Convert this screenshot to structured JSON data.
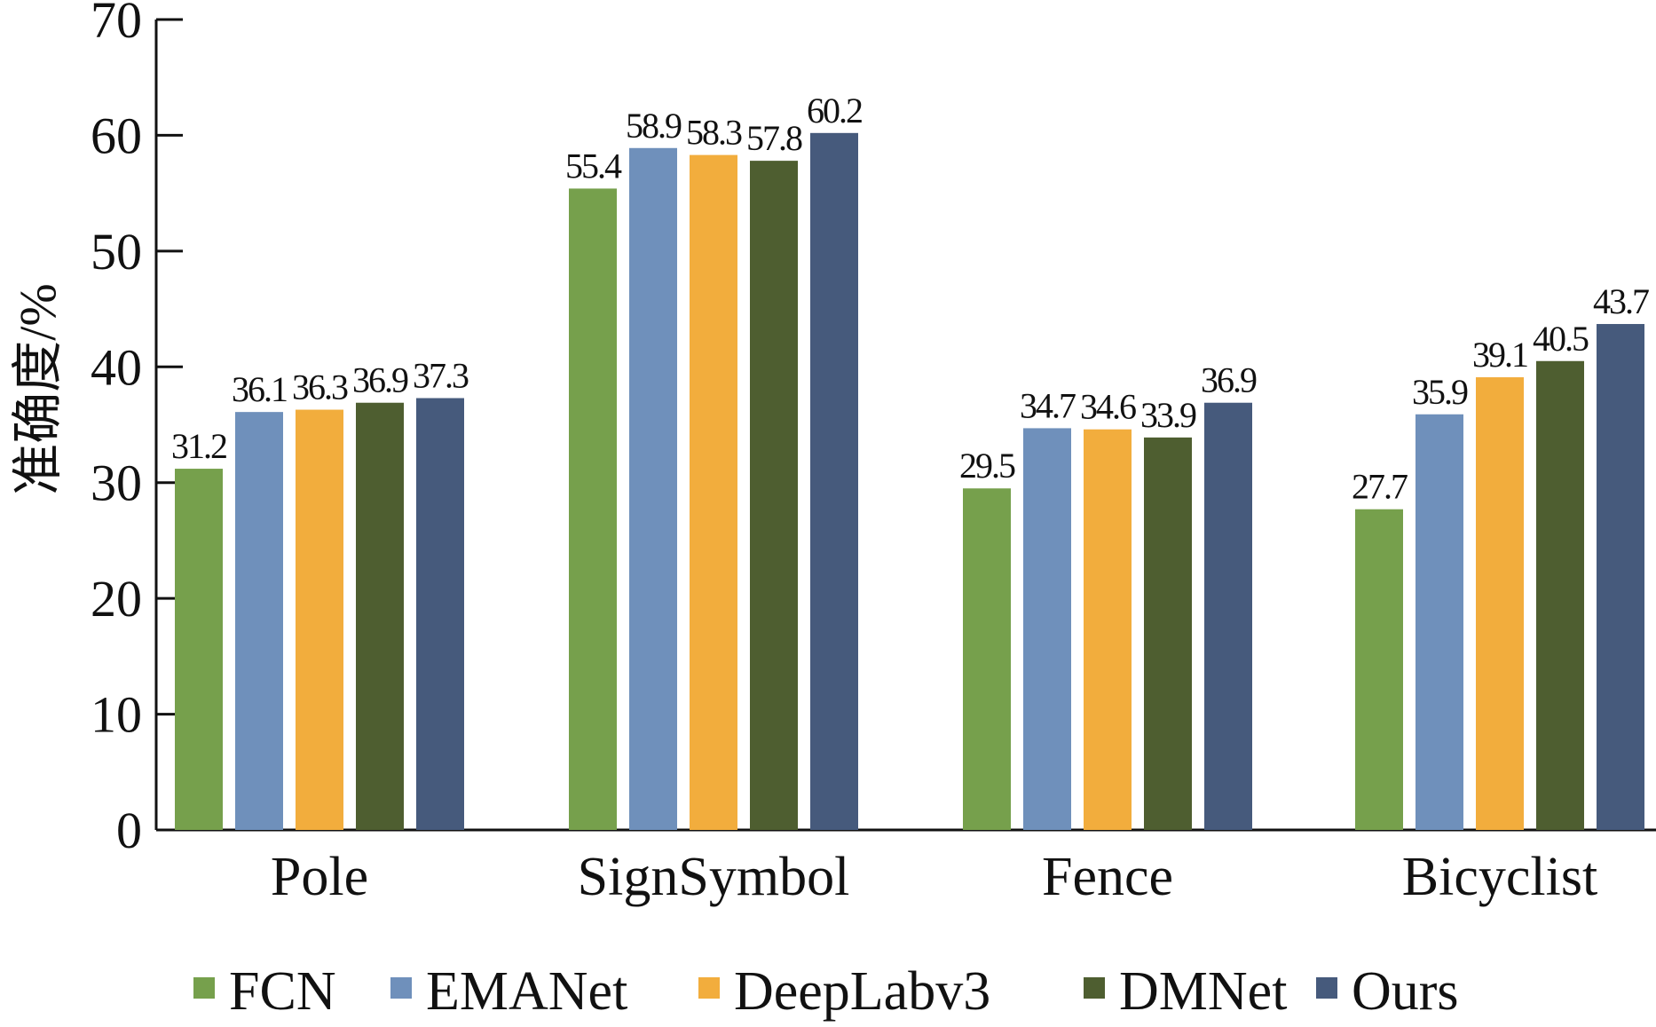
{
  "chart_data": {
    "type": "bar",
    "ylabel": "准确度/%",
    "xlabel": "",
    "ylim": [
      0,
      70
    ],
    "yticks": [
      0,
      10,
      20,
      30,
      40,
      50,
      60,
      70
    ],
    "categories": [
      "Pole",
      "SignSymbol",
      "Fence",
      "Bicyclist"
    ],
    "series": [
      {
        "name": "FCN",
        "color": "#76a04c",
        "values": [
          31.2,
          55.4,
          29.5,
          27.7
        ]
      },
      {
        "name": "EMANet",
        "color": "#6f90bb",
        "values": [
          36.1,
          58.9,
          34.7,
          35.9
        ]
      },
      {
        "name": "DeepLabv3",
        "color": "#f2ad3d",
        "values": [
          36.3,
          58.3,
          34.6,
          39.1
        ]
      },
      {
        "name": "DMNet",
        "color": "#4e5e30",
        "values": [
          36.9,
          57.8,
          33.9,
          40.5
        ]
      },
      {
        "name": "Ours",
        "color": "#465a7c",
        "values": [
          37.3,
          60.2,
          36.9,
          43.7
        ]
      }
    ],
    "legend": "bottom",
    "grid": false
  }
}
